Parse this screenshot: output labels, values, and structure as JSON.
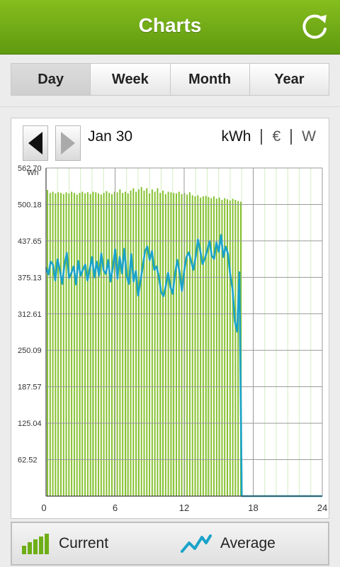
{
  "header": {
    "title": "Charts"
  },
  "tabs": [
    {
      "label": "Day",
      "active": true
    },
    {
      "label": "Week",
      "active": false
    },
    {
      "label": "Month",
      "active": false
    },
    {
      "label": "Year",
      "active": false
    }
  ],
  "chart_header": {
    "date": "Jan 30",
    "units": [
      "kWh",
      "€",
      "W"
    ],
    "selected_unit": "kWh"
  },
  "legend": {
    "current": "Current",
    "average": "Average"
  },
  "colors": {
    "header": "#74ad18",
    "bar": "#86c130",
    "line": "#1aa3c9"
  },
  "chart_data": {
    "type": "bar",
    "ylabel": "Wh",
    "xlim": [
      0,
      24
    ],
    "ylim": [
      0,
      562.7
    ],
    "yticks": [
      62.52,
      125.04,
      187.57,
      250.09,
      312.61,
      375.13,
      437.65,
      500.18,
      562.7
    ],
    "ytick_labels": [
      "62.52",
      "125.04",
      "187.57",
      "250.09",
      "312.61",
      "375.13",
      "437.65",
      "500.18",
      "562.70"
    ],
    "xticks": [
      0,
      6,
      12,
      18,
      24
    ],
    "xtick_labels": [
      "0",
      "6",
      "12",
      "18",
      "24"
    ],
    "grid": true,
    "series": [
      {
        "name": "Current",
        "type": "bar",
        "values": [
          525,
          520,
          522,
          519,
          521,
          520,
          518,
          521,
          519,
          522,
          520,
          517,
          520,
          522,
          519,
          521,
          518,
          522,
          521,
          519,
          517,
          520,
          523,
          520,
          518,
          522,
          521,
          526,
          520,
          522,
          519,
          524,
          528,
          522,
          526,
          530,
          524,
          528,
          519,
          526,
          522,
          528,
          520,
          524,
          518,
          522,
          521,
          520,
          519,
          522,
          518,
          520,
          517,
          521,
          516,
          514,
          516,
          512,
          514,
          515,
          513,
          511,
          514,
          510,
          512,
          508,
          511,
          509,
          507,
          510,
          508,
          506,
          505
        ],
        "x_step": 0.2333
      },
      {
        "name": "Average",
        "type": "line",
        "x": [
          0,
          0.2,
          0.4,
          0.6,
          0.8,
          1.0,
          1.2,
          1.4,
          1.6,
          1.8,
          2.0,
          2.2,
          2.4,
          2.6,
          2.8,
          3.0,
          3.2,
          3.4,
          3.6,
          3.8,
          4.0,
          4.2,
          4.4,
          4.6,
          4.8,
          5.0,
          5.2,
          5.4,
          5.6,
          5.8,
          6.0,
          6.2,
          6.4,
          6.6,
          6.8,
          7.0,
          7.2,
          7.4,
          7.6,
          7.8,
          8.0,
          8.2,
          8.4,
          8.6,
          8.8,
          9.0,
          9.2,
          9.4,
          9.6,
          9.8,
          10.0,
          10.2,
          10.4,
          10.6,
          10.8,
          11.0,
          11.2,
          11.4,
          11.6,
          11.8,
          12.0,
          12.2,
          12.4,
          12.6,
          12.8,
          13.0,
          13.2,
          13.4,
          13.6,
          13.8,
          14.0,
          14.2,
          14.4,
          14.6,
          14.8,
          15.0,
          15.2,
          15.4,
          15.6,
          15.8,
          16.0,
          16.2,
          16.4,
          16.6,
          16.8,
          17.0,
          17.2,
          18,
          21,
          24
        ],
        "values": [
          392,
          380,
          402,
          397,
          370,
          406,
          388,
          364,
          397,
          417,
          374,
          383,
          394,
          363,
          403,
          378,
          388,
          397,
          370,
          390,
          410,
          375,
          402,
          378,
          416,
          387,
          381,
          405,
          368,
          392,
          423,
          373,
          410,
          382,
          424,
          378,
          364,
          415,
          368,
          386,
          344,
          368,
          394,
          420,
          428,
          405,
          420,
          388,
          394,
          376,
          350,
          343,
          360,
          383,
          359,
          347,
          380,
          405,
          384,
          352,
          386,
          410,
          418,
          403,
          388,
          411,
          440,
          420,
          398,
          408,
          421,
          437,
          412,
          407,
          435,
          419,
          448,
          410,
          428,
          416,
          380,
          355,
          300,
          282,
          384,
          0,
          0,
          0,
          0,
          0
        ]
      }
    ]
  }
}
